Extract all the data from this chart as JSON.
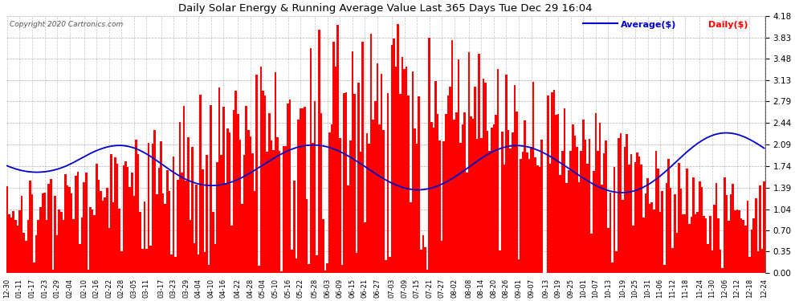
{
  "title": "Daily Solar Energy & Running Average Value Last 365 Days Tue Dec 29 16:04",
  "copyright": "Copyright 2020 Cartronics.com",
  "legend_avg": "Average($)",
  "legend_daily": "Daily($)",
  "bar_color": "#ff0000",
  "avg_line_color": "#0000cc",
  "background_color": "#ffffff",
  "grid_color": "#aaaaaa",
  "yticks": [
    0.0,
    0.35,
    0.7,
    1.04,
    1.39,
    1.74,
    2.09,
    2.44,
    2.79,
    3.13,
    3.48,
    3.83,
    4.18
  ],
  "ylim": [
    0.0,
    4.18
  ],
  "x_labels": [
    "12-30",
    "01-11",
    "01-17",
    "01-23",
    "01-29",
    "02-04",
    "02-10",
    "02-16",
    "02-22",
    "02-28",
    "03-05",
    "03-11",
    "03-17",
    "03-23",
    "03-29",
    "04-04",
    "04-10",
    "04-16",
    "04-22",
    "04-28",
    "05-04",
    "05-10",
    "05-16",
    "05-22",
    "05-28",
    "06-03",
    "06-09",
    "06-15",
    "06-21",
    "06-27",
    "07-03",
    "07-09",
    "07-15",
    "07-21",
    "07-27",
    "08-02",
    "08-08",
    "08-14",
    "08-20",
    "08-26",
    "09-01",
    "09-07",
    "09-13",
    "09-19",
    "09-25",
    "10-01",
    "10-07",
    "10-13",
    "10-19",
    "10-25",
    "10-31",
    "11-06",
    "11-12",
    "11-18",
    "11-24",
    "11-30",
    "12-06",
    "12-12",
    "12-18",
    "12-24"
  ],
  "avg_shape": [
    1.745,
    1.73,
    1.718,
    1.706,
    1.695,
    1.685,
    1.676,
    1.668,
    1.661,
    1.655,
    1.65,
    1.646,
    1.643,
    1.641,
    1.64,
    1.64,
    1.641,
    1.643,
    1.646,
    1.65,
    1.655,
    1.661,
    1.668,
    1.676,
    1.685,
    1.695,
    1.706,
    1.718,
    1.73,
    1.745,
    1.76,
    1.776,
    1.793,
    1.81,
    1.828,
    1.846,
    1.864,
    1.882,
    1.9,
    1.918,
    1.935,
    1.952,
    1.968,
    1.983,
    1.997,
    2.01,
    2.022,
    2.033,
    2.043,
    2.052,
    2.059,
    2.065,
    2.07,
    2.073,
    2.075,
    2.075,
    2.074,
    2.071,
    2.066,
    2.06,
    2.052,
    2.043,
    2.032,
    2.019,
    2.005,
    1.99,
    1.973,
    1.955,
    1.936,
    1.916,
    1.895,
    1.873,
    1.85,
    1.827,
    1.804,
    1.78,
    1.756,
    1.732,
    1.709,
    1.686,
    1.663,
    1.641,
    1.62,
    1.599,
    1.58,
    1.561,
    1.543,
    1.527,
    1.511,
    1.497,
    1.484,
    1.472,
    1.461,
    1.452,
    1.444,
    1.437,
    1.432,
    1.428,
    1.425,
    1.423,
    1.423,
    1.424,
    1.426,
    1.43,
    1.434,
    1.44,
    1.447,
    1.456,
    1.465,
    1.476,
    1.488,
    1.501,
    1.515,
    1.53,
    1.546,
    1.563,
    1.581,
    1.599,
    1.618,
    1.638,
    1.658,
    1.679,
    1.7,
    1.721,
    1.742,
    1.763,
    1.784,
    1.805,
    1.826,
    1.847,
    1.867,
    1.887,
    1.906,
    1.924,
    1.942,
    1.959,
    1.975,
    1.99,
    2.004,
    2.017,
    2.029,
    2.04,
    2.05,
    2.058,
    2.065,
    2.071,
    2.076,
    2.079,
    2.081,
    2.082,
    2.082,
    2.08,
    2.077,
    2.073,
    2.067,
    2.06,
    2.052,
    2.043,
    2.032,
    2.02,
    2.007,
    1.993,
    1.978,
    1.962,
    1.945,
    1.928,
    1.909,
    1.89,
    1.87,
    1.849,
    1.828,
    1.807,
    1.785,
    1.763,
    1.74,
    1.718,
    1.695,
    1.673,
    1.65,
    1.628,
    1.606,
    1.585,
    1.564,
    1.544,
    1.525,
    1.506,
    1.488,
    1.471,
    1.455,
    1.44,
    1.426,
    1.413,
    1.401,
    1.39,
    1.381,
    1.373,
    1.366,
    1.361,
    1.357,
    1.354,
    1.353,
    1.353,
    1.355,
    1.358,
    1.363,
    1.369,
    1.376,
    1.385,
    1.395,
    1.406,
    1.419,
    1.433,
    1.448,
    1.464,
    1.481,
    1.499,
    1.518,
    1.538,
    1.559,
    1.581,
    1.603,
    1.626,
    1.649,
    1.673,
    1.697,
    1.721,
    1.745,
    1.769,
    1.793,
    1.817,
    1.84,
    1.862,
    1.884,
    1.905,
    1.925,
    1.944,
    1.962,
    1.978,
    1.994,
    2.008,
    2.021,
    2.033,
    2.043,
    2.052,
    2.059,
    2.065,
    2.069,
    2.072,
    2.073,
    2.073,
    2.071,
    2.068,
    2.063,
    2.057,
    2.05,
    2.041,
    2.031,
    2.02,
    2.007,
    1.994,
    1.979,
    1.963,
    1.946,
    1.929,
    1.91,
    1.891,
    1.871,
    1.85,
    1.829,
    1.808,
    1.786,
    1.764,
    1.741,
    1.719,
    1.696,
    1.673,
    1.65,
    1.628,
    1.605,
    1.583,
    1.561,
    1.54,
    1.519,
    1.499,
    1.479,
    1.46,
    1.442,
    1.424,
    1.408,
    1.392,
    1.378,
    1.365,
    1.353,
    1.342,
    1.333,
    1.325,
    1.319,
    1.314,
    1.31,
    1.308,
    1.308,
    1.309,
    1.312,
    1.317,
    1.323,
    1.331,
    1.34,
    1.351,
    1.364,
    1.378,
    1.394,
    1.411,
    1.43,
    1.45,
    1.471,
    1.494,
    1.518,
    1.543,
    1.57,
    1.597,
    1.625,
    1.654,
    1.684,
    1.714,
    1.744,
    1.775,
    1.806,
    1.837,
    1.868,
    1.899,
    1.929,
    1.959,
    1.988,
    2.016,
    2.043,
    2.069,
    2.094,
    2.118,
    2.14,
    2.161,
    2.18,
    2.198,
    2.214,
    2.228,
    2.241,
    2.252,
    2.261,
    2.268,
    2.274,
    2.277,
    2.279,
    2.279,
    2.277,
    2.274,
    2.268,
    2.261,
    2.253,
    2.243,
    2.231,
    2.218,
    2.204,
    2.188,
    2.171,
    2.154,
    2.135,
    2.115,
    2.095,
    2.074,
    2.052,
    2.03
  ]
}
